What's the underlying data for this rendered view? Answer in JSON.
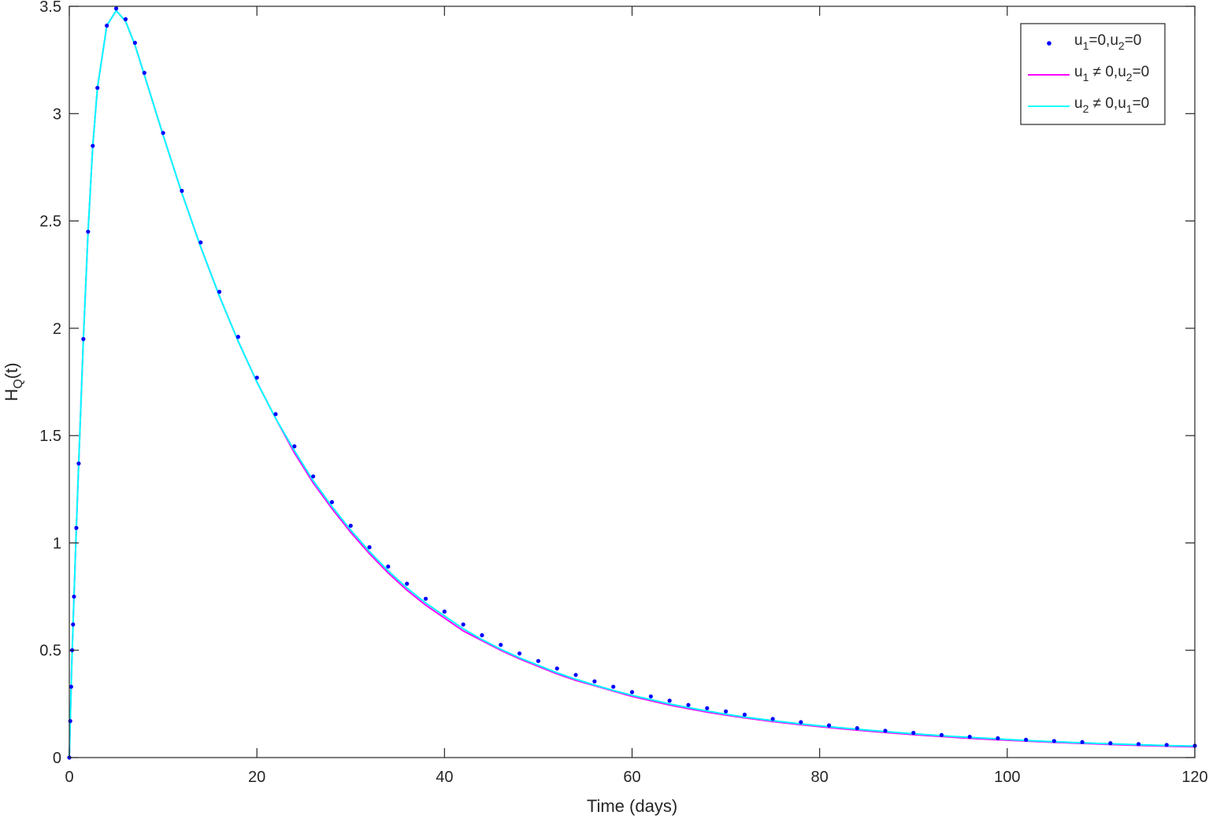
{
  "chart_data": {
    "type": "line",
    "title": "",
    "xlabel": "Time (days)",
    "ylabel": {
      "main": "H",
      "sub": "Q",
      "rest": "(t)"
    },
    "xlim": [
      0,
      120
    ],
    "ylim": [
      0,
      3.5
    ],
    "xticks": [
      0,
      20,
      40,
      60,
      80,
      100,
      120
    ],
    "yticks": [
      0,
      0.5,
      1,
      1.5,
      2,
      2.5,
      3,
      3.5
    ],
    "xtick_labels": [
      "0",
      "20",
      "40",
      "60",
      "80",
      "100",
      "120"
    ],
    "ytick_labels": [
      "0",
      "0.5",
      "1",
      "1.5",
      "2",
      "2.5",
      "3",
      "3.5"
    ],
    "grid": false,
    "legend_position": "top-right",
    "legend": [
      {
        "series": 0,
        "parts": [
          [
            "u",
            ""
          ],
          [
            "1",
            "sub"
          ],
          [
            "=0,u",
            ""
          ],
          [
            "2",
            "sub"
          ],
          [
            "=0",
            ""
          ]
        ]
      },
      {
        "series": 1,
        "parts": [
          [
            "u",
            ""
          ],
          [
            "1",
            "sub"
          ],
          [
            " ≠ 0,u",
            ""
          ],
          [
            "2",
            "sub"
          ],
          [
            "=0",
            ""
          ]
        ]
      },
      {
        "series": 2,
        "parts": [
          [
            "u",
            ""
          ],
          [
            "2",
            "sub"
          ],
          [
            " ≠ 0,u",
            ""
          ],
          [
            "1",
            "sub"
          ],
          [
            "=0",
            ""
          ]
        ]
      }
    ],
    "series": [
      {
        "name": "u1=0,u2=0",
        "style": "dots",
        "color": "#0000ff",
        "x": [
          0,
          0.1,
          0.2,
          0.3,
          0.4,
          0.5,
          0.75,
          1,
          1.5,
          2,
          2.5,
          3,
          4,
          5,
          6,
          7,
          8,
          10,
          12,
          14,
          16,
          18,
          20,
          22,
          24,
          26,
          28,
          30,
          32,
          34,
          36,
          38,
          40,
          42,
          44,
          46,
          48,
          50,
          52,
          54,
          56,
          58,
          60,
          62,
          64,
          66,
          68,
          70,
          72,
          75,
          78,
          81,
          84,
          87,
          90,
          93,
          96,
          99,
          102,
          105,
          108,
          111,
          114,
          117,
          120
        ],
        "y": [
          0,
          0.17,
          0.33,
          0.5,
          0.62,
          0.75,
          1.07,
          1.37,
          1.95,
          2.45,
          2.85,
          3.12,
          3.41,
          3.49,
          3.44,
          3.33,
          3.19,
          2.91,
          2.64,
          2.4,
          2.17,
          1.96,
          1.77,
          1.6,
          1.45,
          1.31,
          1.19,
          1.08,
          0.98,
          0.89,
          0.81,
          0.74,
          0.68,
          0.62,
          0.57,
          0.525,
          0.485,
          0.45,
          0.415,
          0.385,
          0.355,
          0.33,
          0.305,
          0.285,
          0.265,
          0.245,
          0.23,
          0.215,
          0.2,
          0.18,
          0.165,
          0.15,
          0.137,
          0.125,
          0.115,
          0.105,
          0.097,
          0.09,
          0.083,
          0.077,
          0.072,
          0.067,
          0.063,
          0.059,
          0.055
        ]
      },
      {
        "name": "u1 ≠ 0,u2=0",
        "style": "line",
        "color": "#ff00ff",
        "x": [
          0,
          0.25,
          0.5,
          0.75,
          1,
          1.5,
          2,
          2.5,
          3,
          4,
          5,
          6,
          7,
          8,
          10,
          12,
          14,
          16,
          18,
          20,
          22,
          24,
          26,
          28,
          30,
          32,
          34,
          36,
          38,
          40,
          42,
          44,
          46,
          48,
          50,
          52,
          54,
          56,
          58,
          60,
          62,
          64,
          66,
          68,
          70,
          72,
          75,
          78,
          81,
          84,
          87,
          90,
          93,
          96,
          99,
          102,
          105,
          108,
          111,
          114,
          117,
          120
        ],
        "y": [
          0,
          0.42,
          0.75,
          1.07,
          1.37,
          1.95,
          2.45,
          2.85,
          3.12,
          3.41,
          3.48,
          3.43,
          3.32,
          3.18,
          2.9,
          2.63,
          2.38,
          2.15,
          1.94,
          1.75,
          1.58,
          1.42,
          1.28,
          1.16,
          1.05,
          0.95,
          0.86,
          0.78,
          0.71,
          0.65,
          0.59,
          0.545,
          0.5,
          0.46,
          0.425,
          0.39,
          0.36,
          0.335,
          0.31,
          0.285,
          0.265,
          0.245,
          0.228,
          0.212,
          0.198,
          0.185,
          0.168,
          0.153,
          0.14,
          0.128,
          0.117,
          0.107,
          0.098,
          0.09,
          0.083,
          0.077,
          0.071,
          0.066,
          0.061,
          0.057,
          0.053,
          0.05
        ]
      },
      {
        "name": "u2 ≠ 0,u1=0",
        "style": "line",
        "color": "#00ffff",
        "x": [
          0,
          0.25,
          0.5,
          0.75,
          1,
          1.5,
          2,
          2.5,
          3,
          4,
          5,
          6,
          7,
          8,
          10,
          12,
          14,
          16,
          18,
          20,
          22,
          24,
          26,
          28,
          30,
          32,
          34,
          36,
          38,
          40,
          42,
          44,
          46,
          48,
          50,
          52,
          54,
          56,
          58,
          60,
          62,
          64,
          66,
          68,
          70,
          72,
          75,
          78,
          81,
          84,
          87,
          90,
          93,
          96,
          99,
          102,
          105,
          108,
          111,
          114,
          117,
          120
        ],
        "y": [
          0,
          0.42,
          0.75,
          1.07,
          1.37,
          1.95,
          2.45,
          2.85,
          3.12,
          3.41,
          3.48,
          3.43,
          3.32,
          3.18,
          2.9,
          2.63,
          2.38,
          2.15,
          1.94,
          1.75,
          1.58,
          1.43,
          1.29,
          1.17,
          1.06,
          0.96,
          0.87,
          0.79,
          0.72,
          0.66,
          0.6,
          0.55,
          0.505,
          0.465,
          0.43,
          0.395,
          0.365,
          0.338,
          0.313,
          0.29,
          0.27,
          0.25,
          0.233,
          0.217,
          0.202,
          0.189,
          0.172,
          0.157,
          0.144,
          0.132,
          0.121,
          0.111,
          0.102,
          0.094,
          0.087,
          0.08,
          0.074,
          0.069,
          0.064,
          0.06,
          0.056,
          0.053
        ]
      }
    ]
  }
}
